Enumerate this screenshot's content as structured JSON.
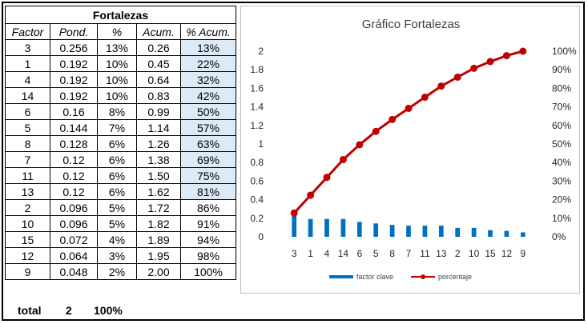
{
  "table": {
    "title": "Fortalezas",
    "headers": [
      "Factor",
      "Pond.",
      "%",
      "Acum.",
      "% Acum."
    ],
    "rows": [
      [
        "3",
        "0.256",
        "13%",
        "0.26",
        "13%"
      ],
      [
        "1",
        "0.192",
        "10%",
        "0.45",
        "22%"
      ],
      [
        "4",
        "0.192",
        "10%",
        "0.64",
        "32%"
      ],
      [
        "14",
        "0.192",
        "10%",
        "0.83",
        "42%"
      ],
      [
        "6",
        "0.16",
        "8%",
        "0.99",
        "50%"
      ],
      [
        "5",
        "0.144",
        "7%",
        "1.14",
        "57%"
      ],
      [
        "8",
        "0.128",
        "6%",
        "1.26",
        "63%"
      ],
      [
        "7",
        "0.12",
        "6%",
        "1.38",
        "69%"
      ],
      [
        "11",
        "0.12",
        "6%",
        "1.50",
        "75%"
      ],
      [
        "13",
        "0.12",
        "6%",
        "1.62",
        "81%"
      ],
      [
        "2",
        "0.096",
        "5%",
        "1.72",
        "86%"
      ],
      [
        "10",
        "0.096",
        "5%",
        "1.82",
        "91%"
      ],
      [
        "15",
        "0.072",
        "4%",
        "1.89",
        "94%"
      ],
      [
        "12",
        "0.064",
        "3%",
        "1.95",
        "98%"
      ],
      [
        "9",
        "0.048",
        "2%",
        "2.00",
        "100%"
      ]
    ],
    "highlighted_rows": 10,
    "highlight_color": "#dce9f6"
  },
  "totals": {
    "label": "total",
    "value": "2",
    "percent": "100%"
  },
  "chart_data": {
    "type": "bar",
    "title": "Gráfico Fortalezas",
    "categories": [
      "3",
      "1",
      "4",
      "14",
      "6",
      "5",
      "8",
      "7",
      "11",
      "13",
      "2",
      "10",
      "15",
      "12",
      "9"
    ],
    "series": [
      {
        "name": "factor clave",
        "type": "bar",
        "axis": "left",
        "color": "#0070c0",
        "values": [
          0.256,
          0.192,
          0.192,
          0.192,
          0.16,
          0.144,
          0.128,
          0.12,
          0.12,
          0.12,
          0.096,
          0.096,
          0.072,
          0.064,
          0.048
        ]
      },
      {
        "name": "porcentaje",
        "type": "line",
        "axis": "right",
        "color": "#c00000",
        "values": [
          0.128,
          0.224,
          0.32,
          0.416,
          0.496,
          0.568,
          0.632,
          0.692,
          0.752,
          0.812,
          0.86,
          0.908,
          0.944,
          0.976,
          1.0
        ]
      }
    ],
    "ylim_left": [
      0,
      2
    ],
    "yticks_left": [
      "0",
      "0.2",
      "0.4",
      "0.6",
      "0.8",
      "1",
      "1.2",
      "1.4",
      "1.6",
      "1.8",
      "2"
    ],
    "ylim_right": [
      0,
      1
    ],
    "yticks_right": [
      "0%",
      "10%",
      "20%",
      "30%",
      "40%",
      "50%",
      "60%",
      "70%",
      "80%",
      "90%",
      "100%"
    ],
    "grid": false,
    "legend_position": "bottom"
  }
}
